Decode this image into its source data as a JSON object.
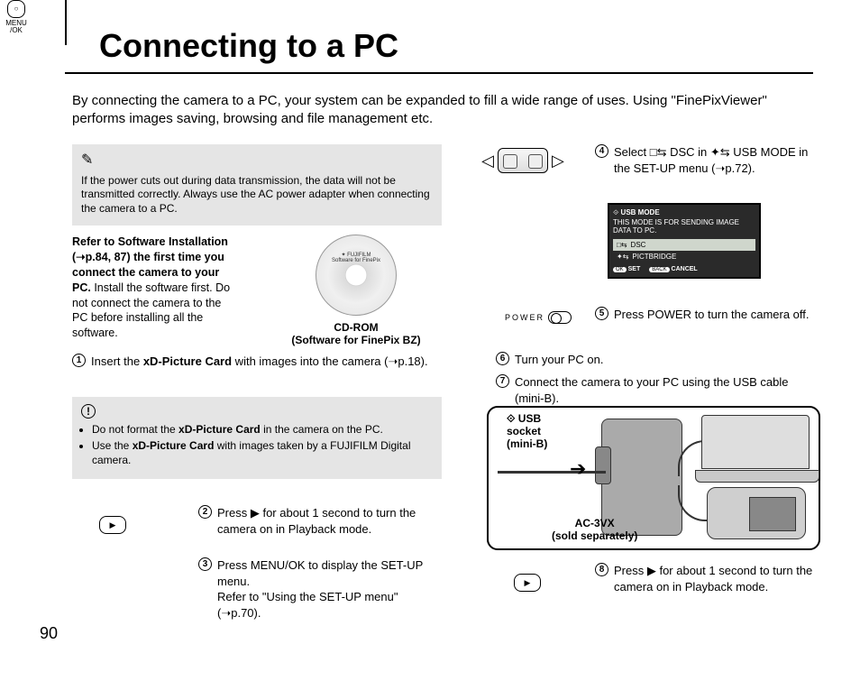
{
  "page": {
    "number": "90",
    "title": "Connecting to a PC",
    "intro": "By connecting the camera to a PC, your system can be expanded to fill a wide range of uses. Using \"FinePixViewer\" performs images saving, browsing and file management etc."
  },
  "note": {
    "text": "If the power cuts out during data transmission, the data will not be transmitted correctly. Always use the AC power adapter when connecting the camera to a PC."
  },
  "software_ref": {
    "bold": "Refer to Software Installation (➝p.84, 87) the first time you connect the camera to your PC.",
    "rest": " Install the software first. Do not connect the camera to the PC before installing all the software."
  },
  "cd": {
    "brand": "✦ FUJIFILM",
    "disc_text": "Software for FinePix",
    "label_line1": "CD-ROM",
    "label_line2": "(Software for FinePix BZ)"
  },
  "steps": {
    "s1_pre": "Insert the ",
    "s1_bold": "xD-Picture Card",
    "s1_post": " with images into the camera (➝p.18).",
    "s2": "Press ▶ for about 1 second to turn the camera on in Playback mode.",
    "s3a": "Press MENU/OK to display the SET-UP menu.",
    "s3b": "Refer to \"Using the SET-UP menu\" (➝p.70).",
    "s4": "Select □⇆ DSC in ✦⇆ USB MODE in the SET-UP menu (➝p.72).",
    "s5": "Press POWER to turn the camera off.",
    "s6": "Turn your PC on.",
    "s7": "Connect the camera to your PC using the USB cable (mini-B).",
    "s8": "Press ▶ for about 1 second to turn the camera on in Playback mode."
  },
  "caution": {
    "item1_pre": "Do not format the ",
    "item1_bold": "xD-Picture Card",
    "item1_post": " in the camera on the PC.",
    "item2_pre": "Use the ",
    "item2_bold": "xD-Picture Card",
    "item2_post": " with images taken by a FUJIFILM Digital camera."
  },
  "menuok_label": "MENU\n/OK",
  "power_label": "POWER",
  "usb_screen": {
    "header": "USB MODE",
    "desc": "THIS MODE IS FOR SENDING IMAGE DATA TO PC.",
    "opt1": "DSC",
    "opt2": "PICTBRIDGE",
    "set_btn": "OK",
    "set_lbl": "SET",
    "cancel_btn": "BACK",
    "cancel_lbl": "CANCEL"
  },
  "diagram": {
    "usb_socket": "⟐ USB\nsocket\n(mini-B)",
    "ac": "AC-3VX\n(sold separately)"
  },
  "colors": {
    "note_bg": "#e5e5e5",
    "screen_bg": "#2a2a2a",
    "screen_sel": "#cfd6cc"
  }
}
